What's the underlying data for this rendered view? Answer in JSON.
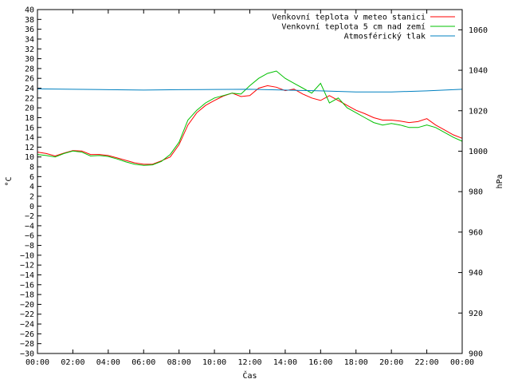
{
  "chart_data": {
    "type": "line",
    "xlabel": "Čas",
    "ylabel_left": "°C",
    "ylabel_right": "hPa",
    "xlim": [
      0,
      24
    ],
    "ylim_left": [
      -30,
      40
    ],
    "ylim_right": [
      900,
      1070
    ],
    "x_ticks": [
      "00:00",
      "02:00",
      "04:00",
      "06:00",
      "08:00",
      "10:00",
      "12:00",
      "14:00",
      "16:00",
      "18:00",
      "20:00",
      "22:00",
      "00:00"
    ],
    "y_ticks_left": [
      -30,
      -28,
      -26,
      -24,
      -22,
      -20,
      -18,
      -16,
      -14,
      -12,
      -10,
      -8,
      -6,
      -4,
      -2,
      0,
      2,
      4,
      6,
      8,
      10,
      12,
      14,
      16,
      18,
      20,
      22,
      24,
      26,
      28,
      30,
      32,
      34,
      36,
      38,
      40
    ],
    "y_ticks_right": [
      900,
      920,
      940,
      960,
      980,
      1000,
      1020,
      1040,
      1060
    ],
    "grid": false,
    "legend_position": "top-right",
    "series": [
      {
        "name": "Venkovní teplota v meteo stanici",
        "color": "#ff0000",
        "axis": "left",
        "x": [
          0,
          0.5,
          1,
          1.5,
          2,
          2.5,
          3,
          3.5,
          4,
          4.5,
          5,
          5.5,
          6,
          6.5,
          7,
          7.5,
          8,
          8.5,
          9,
          9.5,
          10,
          10.5,
          11,
          11.5,
          12,
          12.5,
          13,
          13.5,
          14,
          14.5,
          15,
          15.5,
          16,
          16.5,
          17,
          17.5,
          18,
          18.5,
          19,
          19.5,
          20,
          20.5,
          21,
          21.5,
          22,
          22.5,
          23,
          23.5,
          24
        ],
        "values": [
          11,
          10.7,
          10.2,
          10.8,
          11.3,
          11.2,
          10.5,
          10.5,
          10.3,
          9.8,
          9.3,
          8.8,
          8.5,
          8.5,
          9.2,
          10,
          12.5,
          16.5,
          19,
          20.5,
          21.5,
          22.4,
          23,
          22.3,
          22.5,
          24,
          24.5,
          24.2,
          23.5,
          23.8,
          22.8,
          22,
          21.5,
          22.5,
          21.5,
          20.5,
          19.5,
          18.8,
          18,
          17.5,
          17.5,
          17.3,
          17,
          17.2,
          17.8,
          16.5,
          15.5,
          14.5,
          13.8
        ]
      },
      {
        "name": "Venkovní teplota 5 cm nad zemí",
        "color": "#00c000",
        "axis": "left",
        "x": [
          0,
          0.5,
          1,
          1.5,
          2,
          2.5,
          3,
          3.5,
          4,
          4.5,
          5,
          5.5,
          6,
          6.5,
          7,
          7.5,
          8,
          8.5,
          9,
          9.5,
          10,
          10.5,
          11,
          11.5,
          12,
          12.5,
          13,
          13.5,
          14,
          14.5,
          15,
          15.5,
          16,
          16.5,
          17,
          17.5,
          18,
          18.5,
          19,
          19.5,
          20,
          20.5,
          21,
          21.5,
          22,
          22.5,
          23,
          23.5,
          24
        ],
        "values": [
          10.5,
          10.3,
          10,
          10.7,
          11.2,
          11,
          10.2,
          10.3,
          10.1,
          9.6,
          9,
          8.5,
          8.3,
          8.4,
          9.1,
          10.5,
          13,
          17.5,
          19.5,
          21,
          22,
          22.5,
          23,
          22.8,
          24.5,
          26,
          27,
          27.5,
          26,
          25,
          24,
          23,
          25,
          21,
          22,
          20,
          19,
          18,
          17,
          16.5,
          16.8,
          16.5,
          16,
          16,
          16.5,
          16,
          15,
          14,
          13.2
        ]
      },
      {
        "name": "Atmosférický tlak",
        "color": "#0080c0",
        "axis": "right",
        "x": [
          0,
          2,
          4,
          6,
          8,
          10,
          12,
          14,
          16,
          18,
          20,
          22,
          24
        ],
        "values": [
          1030.8,
          1030.6,
          1030.4,
          1030.2,
          1030.4,
          1030.5,
          1030.6,
          1030.2,
          1029.8,
          1029.3,
          1029.3,
          1029.8,
          1030.6
        ]
      }
    ]
  }
}
